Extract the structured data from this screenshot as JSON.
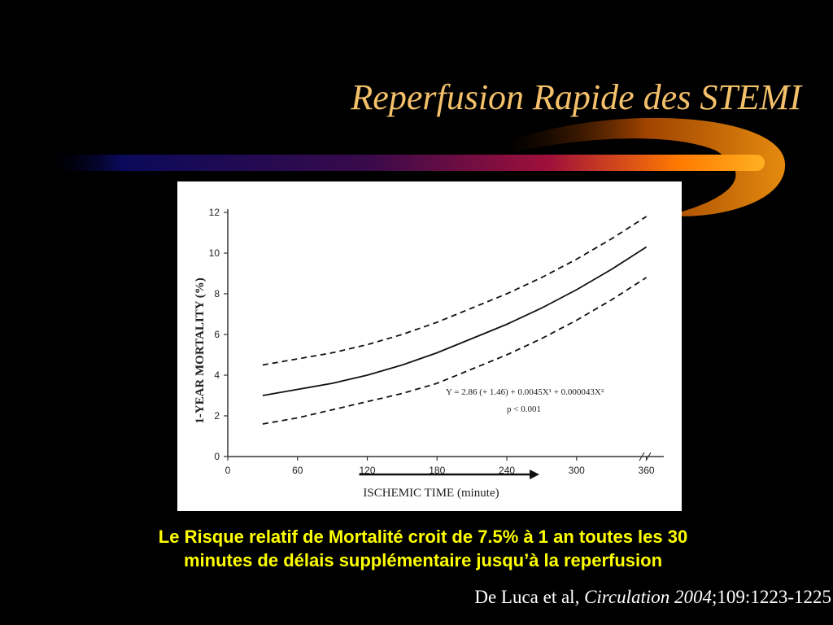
{
  "slide": {
    "title": "Reperfusion Rapide des STEMI",
    "caption_line1": "Le Risque relatif de Mortalité croit de 7.5% à 1 an toutes les 30",
    "caption_line2": "minutes de délais supplémentaire jusqu’à la reperfusion",
    "citation": {
      "authors": "De Luca et al, ",
      "journal": "Circulation 2004",
      "ref": ";109:1223-1225"
    }
  },
  "colors": {
    "background": "#000000",
    "title": "#f4c06a",
    "caption": "#ffff00",
    "citation": "#ffffff",
    "swoosh_left": "#0a0a5a",
    "swoosh_right": "#ff9a00"
  },
  "chart_data": {
    "type": "line",
    "xlabel": "ISCHEMIC TIME (minute)",
    "ylabel": "1-YEAR MORTALITY (%)",
    "xlim": [
      0,
      375
    ],
    "ylim": [
      0,
      12
    ],
    "xticks": [
      0,
      60,
      120,
      180,
      240,
      300,
      360
    ],
    "yticks": [
      0,
      2,
      4,
      6,
      8,
      10,
      12
    ],
    "arrow": {
      "from_x": 120,
      "to_x": 240
    },
    "equation_line1": "Y = 2.86 (+ 1.46) + 0.0045X¹ + 0.000043X²",
    "equation_line2": "p < 0.001",
    "series": [
      {
        "style": "solid",
        "x": [
          30,
          60,
          90,
          120,
          150,
          180,
          210,
          240,
          270,
          300,
          330,
          360
        ],
        "y": [
          3.0,
          3.3,
          3.6,
          4.0,
          4.5,
          5.1,
          5.8,
          6.5,
          7.3,
          8.2,
          9.2,
          10.3
        ]
      },
      {
        "style": "dashed",
        "x": [
          30,
          60,
          90,
          120,
          150,
          180,
          210,
          240,
          270,
          300,
          330,
          360
        ],
        "y": [
          4.5,
          4.8,
          5.1,
          5.5,
          6.0,
          6.6,
          7.3,
          8.0,
          8.8,
          9.7,
          10.7,
          11.8
        ]
      },
      {
        "style": "dashed",
        "x": [
          30,
          60,
          90,
          120,
          150,
          180,
          210,
          240,
          270,
          300,
          330,
          360
        ],
        "y": [
          1.6,
          1.9,
          2.3,
          2.7,
          3.1,
          3.6,
          4.3,
          5.0,
          5.8,
          6.7,
          7.7,
          8.8
        ]
      }
    ]
  }
}
